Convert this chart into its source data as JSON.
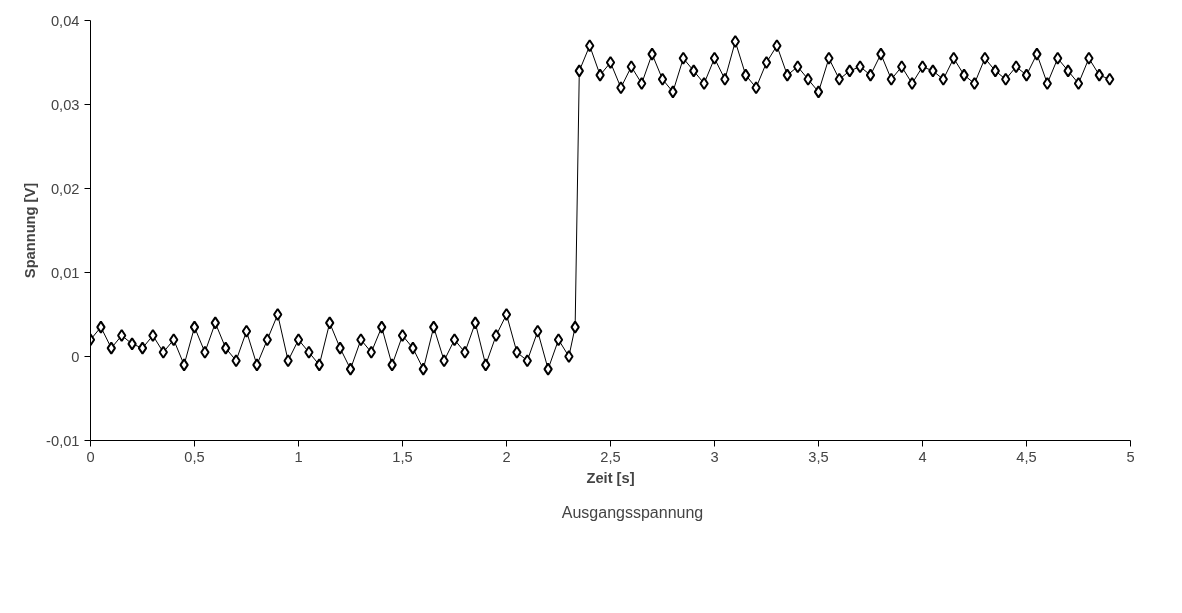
{
  "chart_data": {
    "type": "line",
    "xlabel": "Zeit [s]",
    "ylabel": "Spannung [V]",
    "xlim": [
      0,
      5
    ],
    "ylim": [
      -0.01,
      0.04
    ],
    "xticks": [
      0,
      {
        "value": 0.5,
        "label": "0,5"
      },
      1,
      {
        "value": 1.5,
        "label": "1,5"
      },
      2,
      {
        "value": 2.5,
        "label": "2,5"
      },
      3,
      {
        "value": 3.5,
        "label": "3,5"
      },
      4,
      {
        "value": 4.5,
        "label": "4,5"
      },
      5
    ],
    "yticks": [
      {
        "value": -0.01,
        "label": "-0,01"
      },
      0,
      {
        "value": 0.01,
        "label": "0,01"
      },
      {
        "value": 0.02,
        "label": "0,02"
      },
      {
        "value": 0.03,
        "label": "0,03"
      },
      {
        "value": 0.04,
        "label": "0,04"
      }
    ],
    "x": [
      0,
      0.05,
      0.1,
      0.15,
      0.2,
      0.25,
      0.3,
      0.35,
      0.4,
      0.45,
      0.5,
      0.55,
      0.6,
      0.65,
      0.7,
      0.75,
      0.8,
      0.85,
      0.9,
      0.95,
      1.0,
      1.05,
      1.1,
      1.15,
      1.2,
      1.25,
      1.3,
      1.35,
      1.4,
      1.45,
      1.5,
      1.55,
      1.6,
      1.65,
      1.7,
      1.75,
      1.8,
      1.85,
      1.9,
      1.95,
      2.0,
      2.05,
      2.1,
      2.15,
      2.2,
      2.25,
      2.3,
      2.33,
      2.35,
      2.4,
      2.45,
      2.5,
      2.55,
      2.6,
      2.65,
      2.7,
      2.75,
      2.8,
      2.85,
      2.9,
      2.95,
      3.0,
      3.05,
      3.1,
      3.15,
      3.2,
      3.25,
      3.3,
      3.35,
      3.4,
      3.45,
      3.5,
      3.55,
      3.6,
      3.65,
      3.7,
      3.75,
      3.8,
      3.85,
      3.9,
      3.95,
      4.0,
      4.05,
      4.1,
      4.15,
      4.2,
      4.25,
      4.3,
      4.35,
      4.4,
      4.45,
      4.5,
      4.55,
      4.6,
      4.65,
      4.7,
      4.75,
      4.8,
      4.85,
      4.9
    ],
    "series": [
      {
        "name": "Ausgangsspannung",
        "color": "#000000",
        "values": [
          0.002,
          0.0035,
          0.001,
          0.0025,
          0.0015,
          0.001,
          0.0025,
          0.0005,
          0.002,
          -0.001,
          0.0035,
          0.0005,
          0.004,
          0.001,
          -0.0005,
          0.003,
          -0.001,
          0.002,
          0.005,
          -0.0005,
          0.002,
          0.0005,
          -0.001,
          0.004,
          0.001,
          -0.0015,
          0.002,
          0.0005,
          0.0035,
          -0.001,
          0.0025,
          0.001,
          -0.0015,
          0.0035,
          -0.0005,
          0.002,
          0.0005,
          0.004,
          -0.001,
          0.0025,
          0.005,
          0.0005,
          -0.0005,
          0.003,
          -0.0015,
          0.002,
          0.0,
          0.0035,
          0.034,
          0.037,
          0.0335,
          0.035,
          0.032,
          0.0345,
          0.0325,
          0.036,
          0.033,
          0.0315,
          0.0355,
          0.034,
          0.0325,
          0.0355,
          0.033,
          0.0375,
          0.0335,
          0.032,
          0.035,
          0.037,
          0.0335,
          0.0345,
          0.033,
          0.0315,
          0.0355,
          0.033,
          0.034,
          0.0345,
          0.0335,
          0.036,
          0.033,
          0.0345,
          0.0325,
          0.0345,
          0.034,
          0.033,
          0.0355,
          0.0335,
          0.0325,
          0.0355,
          0.034,
          0.033,
          0.0345,
          0.0335,
          0.036,
          0.0325,
          0.0355,
          0.034,
          0.0325,
          0.0355,
          0.0335,
          0.033
        ]
      }
    ],
    "marker": "diamond",
    "line_style": "solid",
    "grid": false,
    "legend": "bottom"
  }
}
